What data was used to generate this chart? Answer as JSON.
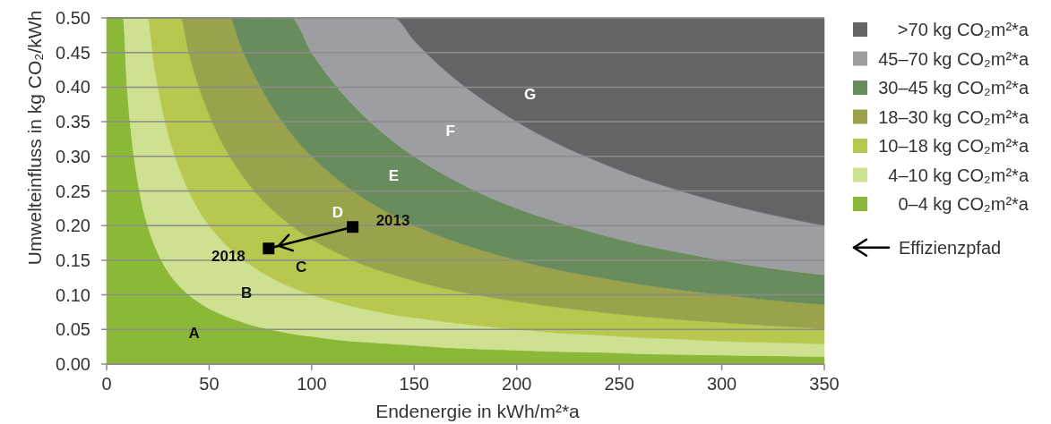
{
  "chart_data": {
    "type": "area",
    "stacked": true,
    "xlabel": "Endenergie in kWh/m²*a",
    "ylabel": "Umwelteinfluss in kg CO₂/kWh",
    "xlim": [
      0,
      350
    ],
    "ylim": [
      0,
      0.5
    ],
    "xticks": [
      0,
      50,
      100,
      150,
      200,
      250,
      300,
      350
    ],
    "yticks": [
      {
        "value": 0,
        "label": "0.00"
      },
      {
        "value": 0.05,
        "label": "0.05"
      },
      {
        "value": 0.1,
        "label": "0.10"
      },
      {
        "value": 0.15,
        "label": "0.15"
      },
      {
        "value": 0.2,
        "label": "0.20"
      },
      {
        "value": 0.25,
        "label": "0.25"
      },
      {
        "value": 0.3,
        "label": "0.30"
      },
      {
        "value": 0.35,
        "label": "0.35"
      },
      {
        "value": 0.4,
        "label": "0.40"
      },
      {
        "value": 0.45,
        "label": "0.45"
      },
      {
        "value": 0.5,
        "label": "0.50"
      }
    ],
    "grid": "y",
    "legend": "right",
    "x": [
      0,
      4,
      8,
      10,
      12,
      14,
      16,
      18,
      20,
      23,
      26,
      30,
      33,
      36,
      40,
      45,
      50,
      55,
      60,
      65,
      70,
      80,
      90,
      100,
      110,
      120,
      130,
      140,
      150,
      165,
      180,
      200,
      220,
      240,
      260,
      280,
      300,
      325,
      350
    ],
    "series": [
      {
        "name": "0–4 kg CO₂m²*a",
        "color": "#8cb838",
        "values": [
          0.5,
          0.5,
          0.5,
          0.4,
          0.333,
          0.286,
          0.25,
          0.222,
          0.2,
          0.174,
          0.154,
          0.133,
          0.121,
          0.111,
          0.1,
          0.089,
          0.08,
          0.073,
          0.067,
          0.062,
          0.057,
          0.05,
          0.044,
          0.04,
          0.036,
          0.033,
          0.031,
          0.029,
          0.027,
          0.024,
          0.022,
          0.02,
          0.018,
          0.017,
          0.015,
          0.014,
          0.013,
          0.012,
          0.011
        ]
      },
      {
        "name": "4–10 kg CO₂m²*a",
        "color": "#cde190",
        "values": [
          0,
          0,
          0,
          0.1,
          0.167,
          0.214,
          0.25,
          0.278,
          0.3,
          0.261,
          0.231,
          0.2,
          0.182,
          0.167,
          0.15,
          0.133,
          0.12,
          0.109,
          0.1,
          0.092,
          0.086,
          0.075,
          0.067,
          0.06,
          0.055,
          0.05,
          0.046,
          0.042,
          0.04,
          0.037,
          0.034,
          0.03,
          0.027,
          0.025,
          0.023,
          0.022,
          0.02,
          0.019,
          0.018
        ]
      },
      {
        "name": "10–18 kg CO₂m²*a",
        "color": "#b8c84f",
        "values": [
          0,
          0,
          0,
          0,
          0,
          0,
          0,
          0,
          0,
          0.065,
          0.115,
          0.167,
          0.197,
          0.222,
          0.2,
          0.178,
          0.16,
          0.145,
          0.133,
          0.123,
          0.114,
          0.1,
          0.089,
          0.08,
          0.073,
          0.067,
          0.061,
          0.058,
          0.053,
          0.048,
          0.044,
          0.04,
          0.037,
          0.033,
          0.031,
          0.028,
          0.027,
          0.024,
          0.022
        ]
      },
      {
        "name": "18–30 kg CO₂m²*a",
        "color": "#9aa24b",
        "values": [
          0,
          0,
          0,
          0,
          0,
          0,
          0,
          0,
          0,
          0,
          0,
          0,
          0,
          0,
          0.05,
          0.1,
          0.14,
          0.173,
          0.2,
          0.185,
          0.172,
          0.15,
          0.133,
          0.12,
          0.109,
          0.1,
          0.093,
          0.085,
          0.08,
          0.073,
          0.067,
          0.06,
          0.054,
          0.05,
          0.046,
          0.043,
          0.04,
          0.037,
          0.035
        ]
      },
      {
        "name": "30–45 kg CO₂m²*a",
        "color": "#688c5c",
        "values": [
          0,
          0,
          0,
          0,
          0,
          0,
          0,
          0,
          0,
          0,
          0,
          0,
          0,
          0,
          0,
          0,
          0,
          0,
          0,
          0.038,
          0.071,
          0.125,
          0.167,
          0.15,
          0.136,
          0.125,
          0.115,
          0.107,
          0.1,
          0.091,
          0.083,
          0.075,
          0.069,
          0.063,
          0.058,
          0.054,
          0.05,
          0.046,
          0.043
        ]
      },
      {
        "name": "45–70 kg CO₂m²*a",
        "color": "#9d9ea2",
        "values": [
          0,
          0,
          0,
          0,
          0,
          0,
          0,
          0,
          0,
          0,
          0,
          0,
          0,
          0,
          0,
          0,
          0,
          0,
          0,
          0,
          0,
          0,
          0,
          0.05,
          0.091,
          0.125,
          0.154,
          0.179,
          0.167,
          0.151,
          0.139,
          0.125,
          0.113,
          0.104,
          0.096,
          0.089,
          0.083,
          0.077,
          0.071
        ]
      },
      {
        "name": ">70 kg CO₂m²*a",
        "color": "#636466",
        "values": [
          0,
          0,
          0,
          0,
          0,
          0,
          0,
          0,
          0,
          0,
          0,
          0,
          0,
          0,
          0,
          0,
          0,
          0,
          0,
          0,
          0,
          0,
          0,
          0,
          0,
          0,
          0,
          0,
          0.033,
          0.076,
          0.111,
          0.15,
          0.182,
          0.208,
          0.231,
          0.25,
          0.267,
          0.285,
          0.3
        ]
      },
      {
        "type": "line",
        "name": "Effizienzpfad",
        "color": "#000000",
        "marker": "square",
        "x": [
          120,
          79
        ],
        "values": [
          0.198,
          0.167
        ]
      }
    ],
    "annotations": [
      "A",
      "B",
      "C",
      "D",
      "E",
      "F",
      "G",
      {
        "text": "2013",
        "x": 120,
        "y": 0.198
      },
      {
        "text": "2018",
        "x": 79,
        "y": 0.167
      }
    ]
  }
}
